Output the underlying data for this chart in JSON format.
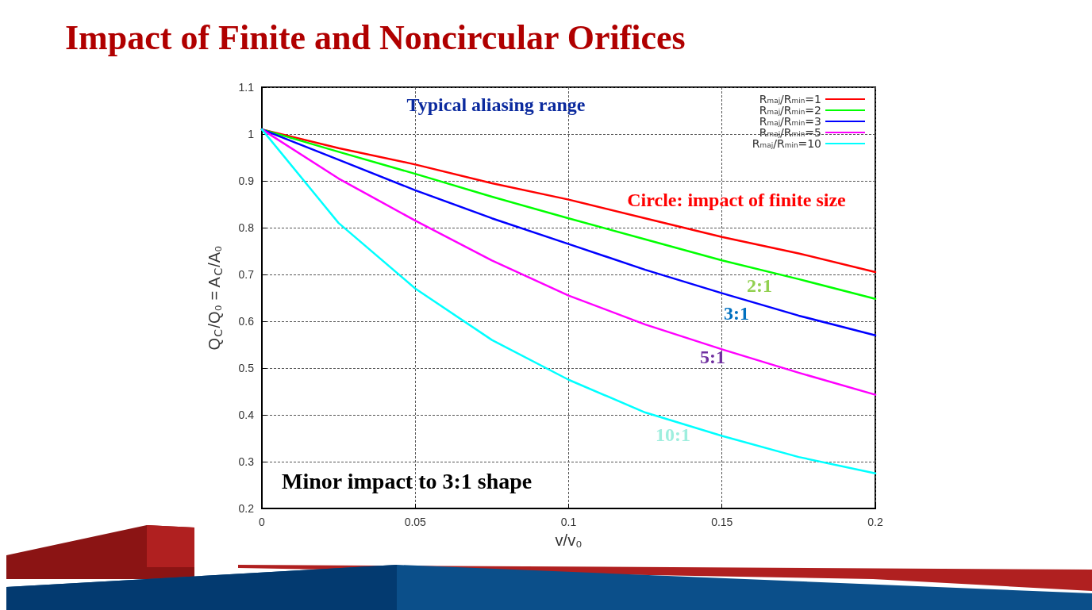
{
  "chart_data": {
    "type": "line",
    "title": "Impact of Finite and Noncircular Orifices",
    "xlabel": "v/v₀",
    "ylabel": "Q$_{C}$/Q₀ = A$_{C}$/A₀",
    "x": [
      0,
      0.025,
      0.05,
      0.075,
      0.1,
      0.125,
      0.15,
      0.175,
      0.2
    ],
    "series": [
      {
        "name": "Rₘₐⱼ/Rₘᵢₙ=1",
        "color": "#ff0000",
        "values": [
          1.01,
          0.97,
          0.935,
          0.895,
          0.86,
          0.82,
          0.78,
          0.745,
          0.705
        ]
      },
      {
        "name": "Rₘₐⱼ/Rₘᵢₙ=2",
        "color": "#00ff00",
        "values": [
          1.01,
          0.962,
          0.915,
          0.866,
          0.82,
          0.775,
          0.73,
          0.69,
          0.648
        ]
      },
      {
        "name": "Rₘₐⱼ/Rₘᵢₙ=3",
        "color": "#0000ff",
        "values": [
          1.01,
          0.945,
          0.88,
          0.82,
          0.765,
          0.71,
          0.66,
          0.612,
          0.57
        ]
      },
      {
        "name": "Rₘₐⱼ/Rₘᵢₙ=5",
        "color": "#ff00ff",
        "values": [
          1.01,
          0.905,
          0.815,
          0.73,
          0.655,
          0.593,
          0.54,
          0.49,
          0.443
        ]
      },
      {
        "name": "Rₘₐⱼ/Rₘᵢₙ=10",
        "color": "#00ffff",
        "values": [
          1.01,
          0.81,
          0.67,
          0.56,
          0.475,
          0.405,
          0.355,
          0.31,
          0.275
        ]
      }
    ],
    "xlim": [
      0,
      0.2
    ],
    "xticks": [
      0,
      0.05,
      0.1,
      0.15,
      0.2
    ],
    "ylim": [
      0.2,
      1.1
    ],
    "yticks": [
      0.2,
      0.3,
      0.4,
      0.5,
      0.6,
      0.7,
      0.8,
      0.9,
      1,
      1.1
    ],
    "grid": true,
    "legend": "top right",
    "marker": "none",
    "line_style": "solid",
    "annotations": [
      "Typical aliasing range",
      "Circle: impact of finite size",
      "2:1",
      "3:1",
      "5:1",
      "10:1",
      "Minor impact to 3:1 shape"
    ]
  }
}
